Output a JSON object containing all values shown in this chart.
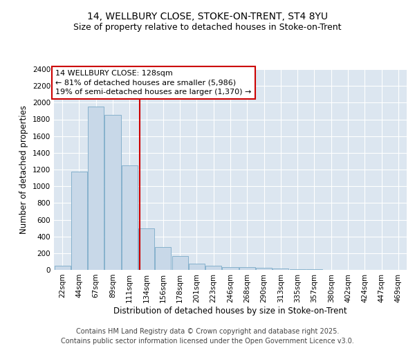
{
  "title_line1": "14, WELLBURY CLOSE, STOKE-ON-TRENT, ST4 8YU",
  "title_line2": "Size of property relative to detached houses in Stoke-on-Trent",
  "xlabel": "Distribution of detached houses by size in Stoke-on-Trent",
  "ylabel": "Number of detached properties",
  "categories": [
    "22sqm",
    "44sqm",
    "67sqm",
    "89sqm",
    "111sqm",
    "134sqm",
    "156sqm",
    "178sqm",
    "201sqm",
    "223sqm",
    "246sqm",
    "268sqm",
    "290sqm",
    "313sqm",
    "335sqm",
    "357sqm",
    "380sqm",
    "402sqm",
    "424sqm",
    "447sqm",
    "469sqm"
  ],
  "values": [
    50,
    1175,
    1950,
    1850,
    1250,
    500,
    270,
    165,
    75,
    50,
    35,
    30,
    25,
    20,
    5,
    5,
    2,
    2,
    1,
    1,
    1
  ],
  "bar_color": "#c8d8e8",
  "bar_edge_color": "#7aaac8",
  "background_color": "#dce6f0",
  "grid_color": "#ffffff",
  "annotation_text_line1": "14 WELLBURY CLOSE: 128sqm",
  "annotation_text_line2": "← 81% of detached houses are smaller (5,986)",
  "annotation_text_line3": "19% of semi-detached houses are larger (1,370) →",
  "annotation_box_color": "#ffffff",
  "annotation_box_edge_color": "#cc0000",
  "vline_color": "#cc0000",
  "vline_x_index": 4.62,
  "footer_line1": "Contains HM Land Registry data © Crown copyright and database right 2025.",
  "footer_line2": "Contains public sector information licensed under the Open Government Licence v3.0.",
  "ylim": [
    0,
    2400
  ],
  "yticks": [
    0,
    200,
    400,
    600,
    800,
    1000,
    1200,
    1400,
    1600,
    1800,
    2000,
    2200,
    2400
  ],
  "title_fontsize": 10,
  "subtitle_fontsize": 9,
  "axis_label_fontsize": 8.5,
  "tick_fontsize": 7.5,
  "annotation_fontsize": 8,
  "footer_fontsize": 7
}
